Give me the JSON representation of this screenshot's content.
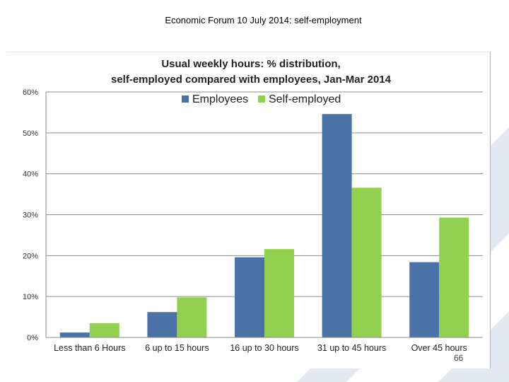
{
  "slide": {
    "title": "Economic Forum 10 July 2014: self-employment",
    "page_number": "66"
  },
  "colors": {
    "employees": "#4a72a6",
    "self_employed": "#92d050",
    "gridline": "#8c8c8c",
    "decoration": "#e3e8f1"
  },
  "chart_data": {
    "type": "bar",
    "title_lines": [
      "Usual weekly hours: % distribution,",
      "self-employed compared with employees, Jan-Mar 2014"
    ],
    "categories": [
      "Less than 6 Hours",
      "6 up to 15 hours",
      "16 up to 30 hours",
      "31 up to 45 hours",
      "Over 45 hours"
    ],
    "series": [
      {
        "name": "Employees",
        "values": [
          1.2,
          6.2,
          19.6,
          54.6,
          18.4
        ]
      },
      {
        "name": "Self-employed",
        "values": [
          3.5,
          9.8,
          21.6,
          36.6,
          29.3
        ]
      }
    ],
    "ylim": [
      0,
      60
    ],
    "yticks": [
      0,
      10,
      20,
      30,
      40,
      50,
      60
    ],
    "ytick_labels": [
      "0%",
      "10%",
      "20%",
      "30%",
      "40%",
      "50%",
      "60%"
    ],
    "grid": true,
    "legend_position": "top-center"
  }
}
